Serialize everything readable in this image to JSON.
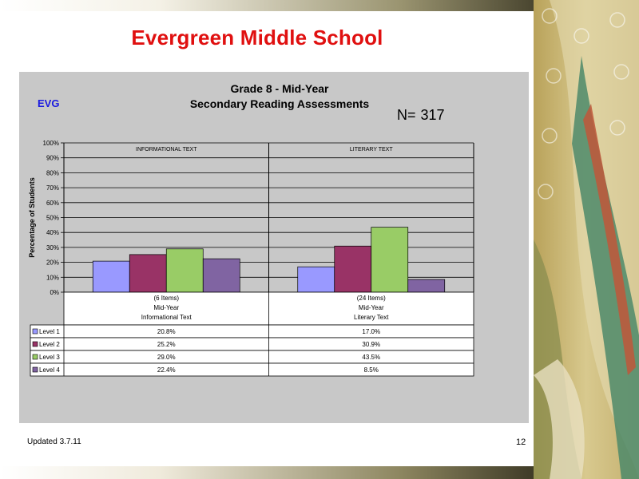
{
  "slide": {
    "title": "Evergreen Middle School",
    "updated": "Updated  3.7.11",
    "page_number": "12",
    "school_code": "EVG",
    "n_label": "N=",
    "n_value": "317"
  },
  "chart_data": {
    "type": "bar",
    "title": "Grade 8 - Mid-Year",
    "subtitle": "Secondary Reading Assessments",
    "ylabel": "Percentage of Students",
    "xlabel": "",
    "ylim": [
      0,
      100
    ],
    "yticks": [
      "0%",
      "10%",
      "20%",
      "30%",
      "40%",
      "50%",
      "60%",
      "70%",
      "80%",
      "90%",
      "100%"
    ],
    "grid": true,
    "groups": [
      {
        "header": "INFORMATIONAL TEXT",
        "label_lines": [
          "(6 Items)",
          "Mid-Year",
          "Informational Text"
        ]
      },
      {
        "header": "LITERARY TEXT",
        "label_lines": [
          "(24 Items)",
          "Mid-Year",
          "Literary Text"
        ]
      }
    ],
    "series": [
      {
        "name": "Level 1",
        "color": "#9999ff",
        "values": [
          20.8,
          17.0
        ],
        "labels": [
          "20.8%",
          "17.0%"
        ]
      },
      {
        "name": "Level 2",
        "color": "#993366",
        "values": [
          25.2,
          30.9
        ],
        "labels": [
          "25.2%",
          "30.9%"
        ]
      },
      {
        "name": "Level 3",
        "color": "#99cc66",
        "values": [
          29.0,
          43.5
        ],
        "labels": [
          "29.0%",
          "43.5%"
        ]
      },
      {
        "name": "Level 4",
        "color": "#8064a2",
        "values": [
          22.4,
          8.5
        ],
        "labels": [
          "22.4%",
          "8.5%"
        ]
      }
    ]
  }
}
